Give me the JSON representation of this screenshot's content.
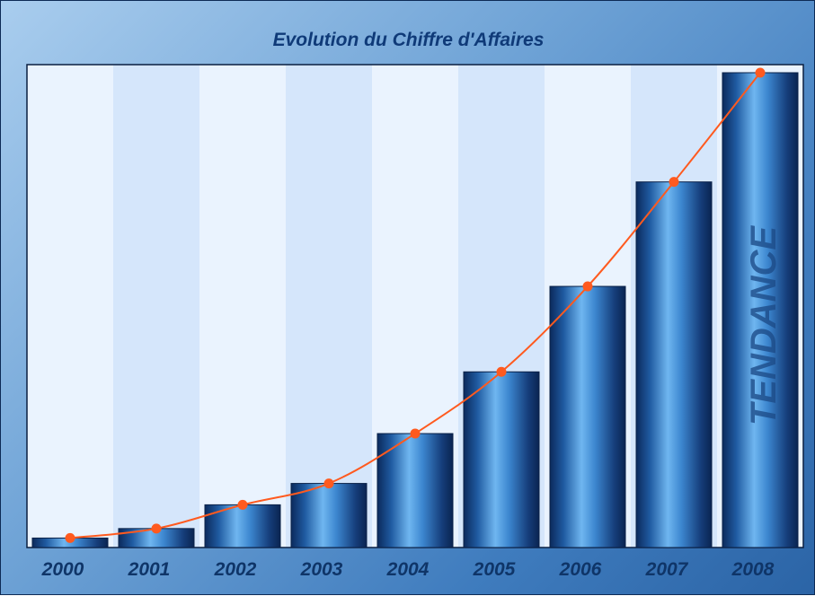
{
  "chart_data": {
    "type": "bar",
    "title": "Evolution du Chiffre d'Affaires",
    "watermark": "TENDANCE",
    "categories": [
      "2000",
      "2001",
      "2002",
      "2003",
      "2004",
      "2005",
      "2006",
      "2007",
      "2008"
    ],
    "values": [
      2,
      4,
      9,
      13.5,
      24,
      37,
      55,
      77,
      100
    ],
    "trend_values": [
      2,
      4,
      9,
      13.5,
      24,
      37,
      55,
      77,
      100
    ],
    "ylim": [
      0,
      100
    ],
    "grid": false,
    "colors": {
      "bar_dark": "#0b2a5c",
      "bar_light": "#5aa6e6",
      "trend_line": "#ff5a1f",
      "band_a": "#eaf3fe",
      "band_b": "#d5e6fb"
    }
  }
}
